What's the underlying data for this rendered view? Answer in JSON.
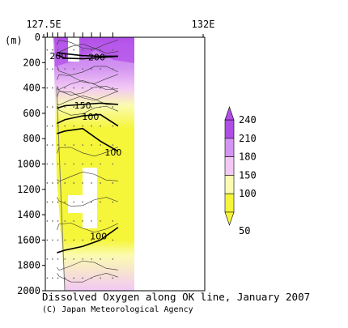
{
  "caption": "Dissolved Oxygen along OK line, January 2007",
  "credit": "(C) Japan Meteorological Agency",
  "chart_data": {
    "type": "contour",
    "title": "Dissolved Oxygen along OK line, January 2007",
    "ylabel": "(m)",
    "y_axis": {
      "ticks": [
        "0",
        "200",
        "400",
        "600",
        "800",
        "1000",
        "1200",
        "1400",
        "1600",
        "1800",
        "2000"
      ],
      "range": [
        0,
        2000
      ],
      "inverted": true
    },
    "x_axis": {
      "ticks": [
        "127.5E",
        "132E"
      ],
      "range": [
        127.5,
        132
      ]
    },
    "station_longitudes": [
      127.6,
      127.75,
      127.9,
      128.1,
      128.35,
      128.6,
      128.85,
      129.1,
      129.45
    ],
    "data_extent_lon": [
      127.6,
      129.6
    ],
    "colorbar": {
      "levels": [
        "240",
        "210",
        "180",
        "150",
        "100",
        "50"
      ],
      "bands": [
        {
          "from": 210,
          "to": 240,
          "color": "#b14ee8"
        },
        {
          "from": 180,
          "to": 210,
          "color": "#d394f2"
        },
        {
          "from": 150,
          "to": 180,
          "color": "#f2c8f5"
        },
        {
          "from": 100,
          "to": 150,
          "color": "#fbfbb0"
        },
        {
          "from": 50,
          "to": 100,
          "color": "#f5f53a"
        }
      ]
    },
    "contours": [
      {
        "label": "200",
        "value": 200,
        "depth_profile_m": [
          140,
          165,
          170,
          160,
          150
        ]
      },
      {
        "label": "200",
        "value": 200,
        "depth_profile_m": [
          120,
          130,
          145,
          150,
          150
        ]
      },
      {
        "label": "150",
        "value": 150,
        "depth_profile_m": [
          560,
          540,
          530,
          520,
          530
        ]
      },
      {
        "label": "100",
        "value": 100,
        "depth_profile_m": [
          680,
          650,
          620,
          610,
          700
        ]
      },
      {
        "label": "100",
        "value": 100,
        "depth_profile_m": [
          760,
          740,
          720,
          820,
          900
        ]
      },
      {
        "label": "100",
        "value": 100,
        "depth_profile_m": [
          1700,
          1680,
          1650,
          1600,
          1500
        ]
      }
    ]
  }
}
